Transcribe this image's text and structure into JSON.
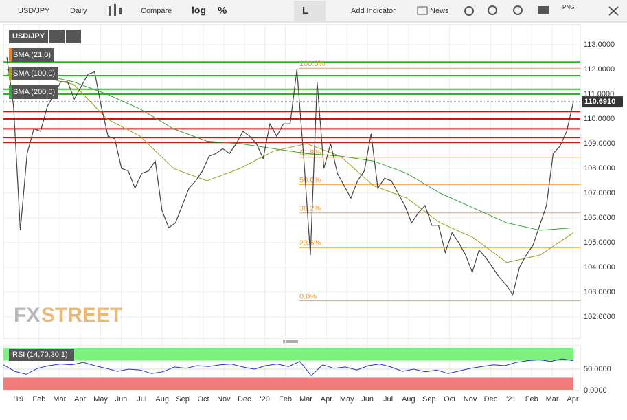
{
  "toolbar": {
    "symbol": "USD/JPY",
    "interval": "Daily",
    "compare": "Compare",
    "log": "log",
    "percent": "%",
    "line_type": "L",
    "add_indicator": "Add Indicator",
    "news": "News",
    "png": "PNG"
  },
  "legend": {
    "symbol": "USD/JPY",
    "sma21": "SMA (21,0)",
    "sma100": "SMA (100,0)",
    "sma200": "SMA (200,0)"
  },
  "price_axis": {
    "ticks": [
      {
        "value": 113,
        "label": "113.0000"
      },
      {
        "value": 112,
        "label": "112.0000"
      },
      {
        "value": 111,
        "label": "111.0000"
      },
      {
        "value": 110,
        "label": "110.0000"
      },
      {
        "value": 109,
        "label": "109.0000"
      },
      {
        "value": 108,
        "label": "108.0000"
      },
      {
        "value": 107,
        "label": "107.0000"
      },
      {
        "value": 106,
        "label": "106.0000"
      },
      {
        "value": 105,
        "label": "105.0000"
      },
      {
        "value": 104,
        "label": "104.0000"
      },
      {
        "value": 103,
        "label": "103.0000"
      },
      {
        "value": 102,
        "label": "102.0000"
      }
    ],
    "last_price": {
      "value": 110.691,
      "label": "110.6910"
    }
  },
  "green_lines": [
    112.3,
    111.75,
    111.2,
    111.0
  ],
  "red_lines": [
    110.3,
    110.0,
    109.6,
    109.25,
    109.05
  ],
  "fib": [
    {
      "label": "100.0%",
      "value": 112.05
    },
    {
      "label": "61.8%",
      "value": 108.45
    },
    {
      "label": "50.0%",
      "value": 107.35
    },
    {
      "label": "38.2%",
      "value": 106.2
    },
    {
      "label": "23.6%",
      "value": 104.8
    },
    {
      "label": "0.0%",
      "value": 102.65
    }
  ],
  "price": {
    "values": [
      112.5,
      110.5,
      105.5,
      108.6,
      109.6,
      109.5,
      110.5,
      111.0,
      111.5,
      111.5,
      110.8,
      111.3,
      111.8,
      111.9,
      110.5,
      109.3,
      109.2,
      108.0,
      107.9,
      107.2,
      107.8,
      107.9,
      108.3,
      106.3,
      105.6,
      105.8,
      106.5,
      107.2,
      107.5,
      107.9,
      108.5,
      108.6,
      108.8,
      108.6,
      109.0,
      109.5,
      109.3,
      109.0,
      108.4,
      109.8,
      109.3,
      109.8,
      109.8,
      112.0,
      108.5,
      104.5,
      111.5,
      108.0,
      109.0,
      107.8,
      107.3,
      106.8,
      107.5,
      107.9,
      109.4,
      107.2,
      107.6,
      107.5,
      107.0,
      106.5,
      105.8,
      106.2,
      106.5,
      105.7,
      105.7,
      104.6,
      105.4,
      105.0,
      104.5,
      103.8,
      104.7,
      104.4,
      104.0,
      103.6,
      103.3,
      102.9,
      104.0,
      104.5,
      104.9,
      105.7,
      106.5,
      108.6,
      108.9,
      109.5,
      110.7
    ]
  },
  "sma100": {
    "values": [
      111.8,
      111.7,
      111.4,
      110.0,
      109.3,
      108.0,
      107.5,
      108.0,
      108.7,
      109.0,
      108.5,
      107.3,
      106.8,
      105.8,
      105.2,
      104.2,
      104.5,
      105.4
    ]
  },
  "sma200": {
    "values": [
      112.0,
      111.8,
      111.5,
      111.0,
      110.4,
      109.6,
      109.1,
      109.0,
      108.8,
      108.6,
      108.5,
      108.3,
      107.8,
      107.0,
      106.4,
      105.8,
      105.5,
      105.6
    ]
  },
  "x_axis": [
    "'19",
    "Feb",
    "Mar",
    "Apr",
    "May",
    "Jun",
    "Jul",
    "Aug",
    "Sep",
    "Oct",
    "Nov",
    "Dec",
    "'20",
    "Feb",
    "Mar",
    "Apr",
    "May",
    "Jun",
    "Jul",
    "Aug",
    "Sep",
    "Oct",
    "Nov",
    "Dec",
    "'21",
    "Feb",
    "Mar",
    "Apr"
  ],
  "rsi": {
    "label": "RSI (14,70,30,1)",
    "ticks": [
      {
        "value": 50,
        "label": "50.0000"
      },
      {
        "value": 0,
        "label": "0.0000"
      }
    ],
    "values": [
      60,
      45,
      38,
      52,
      58,
      62,
      60,
      66,
      58,
      52,
      45,
      50,
      48,
      40,
      44,
      55,
      52,
      58,
      56,
      60,
      62,
      55,
      50,
      58,
      62,
      56,
      68,
      35,
      60,
      52,
      55,
      48,
      58,
      62,
      55,
      45,
      50,
      44,
      48,
      40,
      46,
      52,
      56,
      60,
      58,
      66,
      70,
      72,
      68,
      74,
      70
    ]
  },
  "watermark": {
    "fx": "FX",
    "street": "STREET"
  }
}
